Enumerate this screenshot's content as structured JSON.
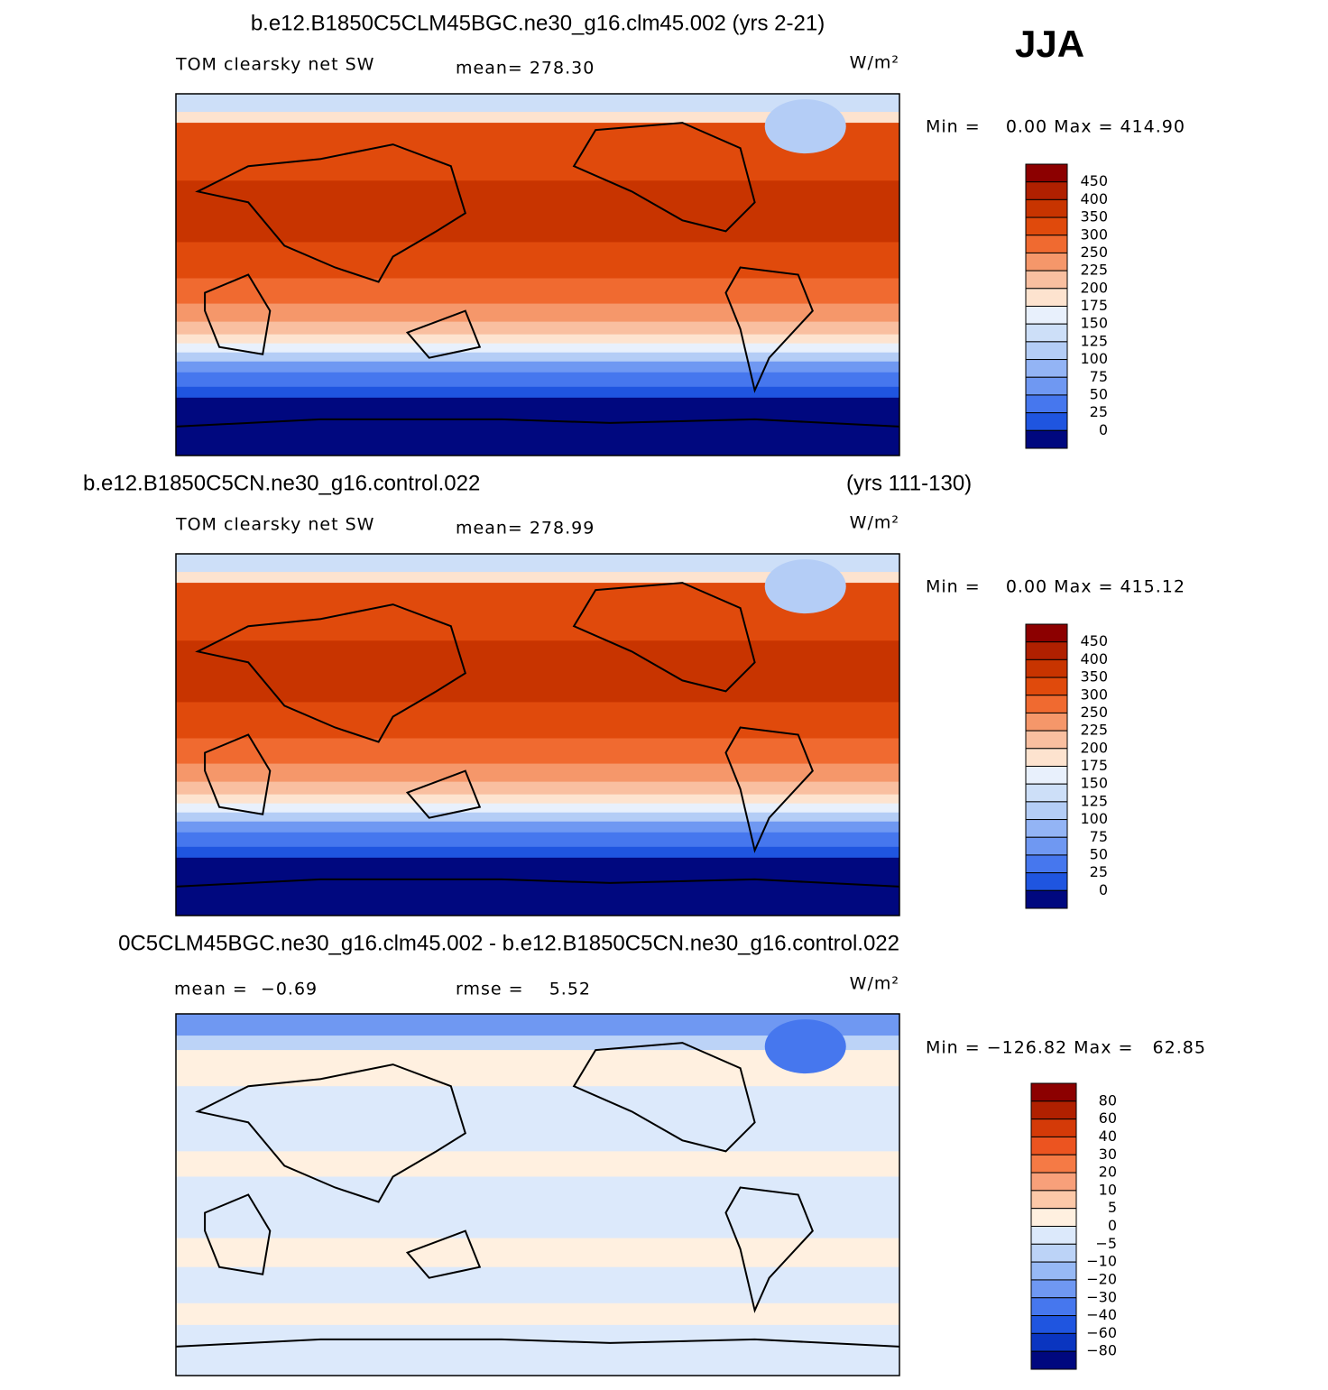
{
  "header": {
    "season": "JJA"
  },
  "panels": [
    {
      "title": "b.e12.B1850C5CLM45BGC.ne30_g16.clm45.002 (yrs 2-21)",
      "field": "TOM clearsky net SW",
      "stat": "mean= 278.30",
      "units": "W/m²",
      "min_max": "Min =    0.00 Max = 414.90",
      "colorbar": {
        "levels": [
          "450",
          "400",
          "350",
          "300",
          "250",
          "225",
          "200",
          "175",
          "150",
          "125",
          "100",
          "75",
          "50",
          "25",
          "0"
        ],
        "colors": [
          "#8c0000",
          "#b02000",
          "#c83400",
          "#e04a0c",
          "#f06a30",
          "#f5976a",
          "#f9bfa0",
          "#fde3cf",
          "#e8f0fc",
          "#cddff8",
          "#b4cdf6",
          "#93b4f5",
          "#6f98f2",
          "#4677ee",
          "#1f55e0",
          "#00087f"
        ]
      }
    },
    {
      "title": "b.e12.B1850C5CN.ne30_g16.control.022",
      "title_right": "(yrs 111-130)",
      "field": "TOM clearsky net SW",
      "stat": "mean= 278.99",
      "units": "W/m²",
      "min_max": "Min =    0.00 Max = 415.12",
      "colorbar": {
        "levels": [
          "450",
          "400",
          "350",
          "300",
          "250",
          "225",
          "200",
          "175",
          "150",
          "125",
          "100",
          "75",
          "50",
          "25",
          "0"
        ],
        "colors": [
          "#8c0000",
          "#b02000",
          "#c83400",
          "#e04a0c",
          "#f06a30",
          "#f5976a",
          "#f9bfa0",
          "#fde3cf",
          "#e8f0fc",
          "#cddff8",
          "#b4cdf6",
          "#93b4f5",
          "#6f98f2",
          "#4677ee",
          "#1f55e0",
          "#00087f"
        ]
      }
    },
    {
      "title": "0C5CLM45BGC.ne30_g16.clm45.002 - b.e12.B1850C5CN.ne30_g16.control.022",
      "stat": "mean =  −0.69",
      "stat2": "rmse =    5.52",
      "units": "W/m²",
      "min_max": "Min = −126.82 Max =   62.85",
      "colorbar": {
        "levels": [
          "80",
          "60",
          "40",
          "30",
          "20",
          "10",
          "5",
          "0",
          "−5",
          "−10",
          "−20",
          "−30",
          "−40",
          "−60",
          "−80"
        ],
        "colors": [
          "#8c0000",
          "#b02000",
          "#d43a08",
          "#ec5420",
          "#f57a45",
          "#f8a07a",
          "#fcc8a8",
          "#fff0e0",
          "#dce9fb",
          "#bcd3f7",
          "#97b9f5",
          "#6f98f2",
          "#4677ee",
          "#1f55e0",
          "#0a35c0",
          "#00087f"
        ]
      }
    }
  ]
}
